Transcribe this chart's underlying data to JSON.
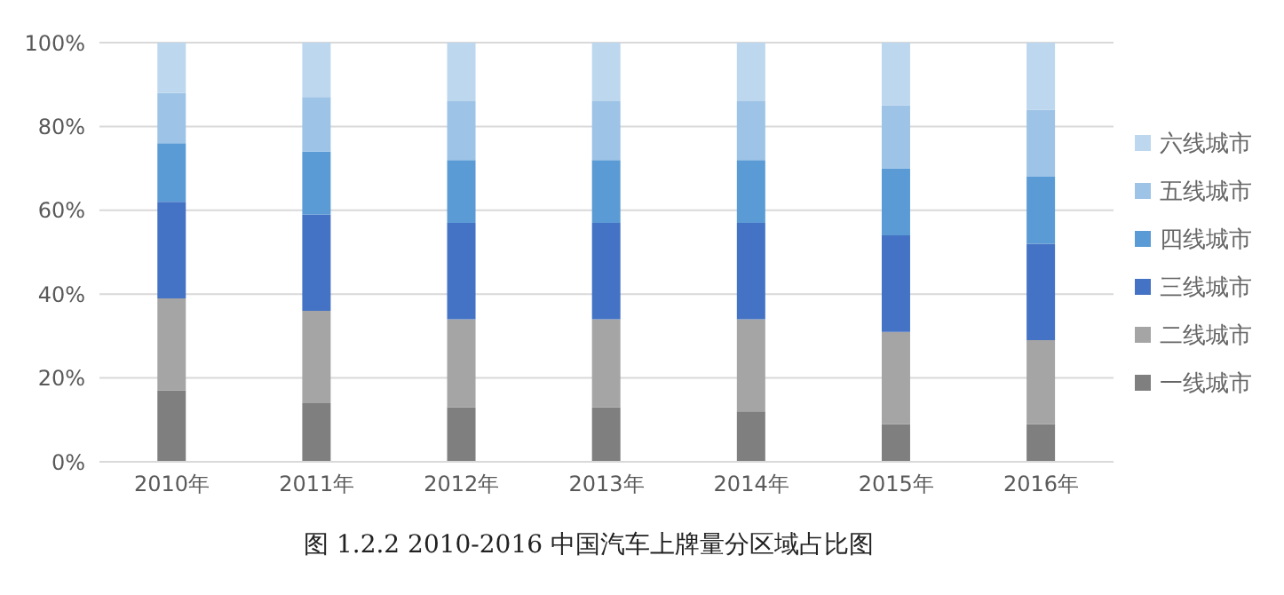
{
  "chart_data": {
    "type": "bar",
    "stacked": true,
    "title": "图 1.2.2 2010-2016 中国汽车上牌量分区域占比图",
    "categories": [
      "2010年",
      "2011年",
      "2012年",
      "2013年",
      "2014年",
      "2015年",
      "2016年"
    ],
    "series": [
      {
        "name": "一线城市",
        "color": "#7f7f7f",
        "values": [
          17,
          14,
          13,
          13,
          12,
          9,
          9
        ]
      },
      {
        "name": "二线城市",
        "color": "#a5a5a5",
        "values": [
          22,
          22,
          21,
          21,
          22,
          22,
          20
        ]
      },
      {
        "name": "三线城市",
        "color": "#4472c4",
        "values": [
          23,
          23,
          23,
          23,
          23,
          23,
          23
        ]
      },
      {
        "name": "四线城市",
        "color": "#5b9bd5",
        "values": [
          14,
          15,
          15,
          15,
          15,
          16,
          16
        ]
      },
      {
        "name": "五线城市",
        "color": "#9dc3e6",
        "values": [
          12,
          13,
          14,
          14,
          14,
          15,
          16
        ]
      },
      {
        "name": "六线城市",
        "color": "#bdd7ee",
        "values": [
          12,
          13,
          14,
          14,
          14,
          15,
          16
        ]
      }
    ],
    "ylim": [
      0,
      100
    ],
    "yticks": [
      {
        "value": 0,
        "label": "0%"
      },
      {
        "value": 20,
        "label": "20%"
      },
      {
        "value": 40,
        "label": "40%"
      },
      {
        "value": 60,
        "label": "60%"
      },
      {
        "value": 80,
        "label": "80%"
      },
      {
        "value": 100,
        "label": "100%"
      }
    ],
    "grid": "y",
    "legend": "right"
  }
}
